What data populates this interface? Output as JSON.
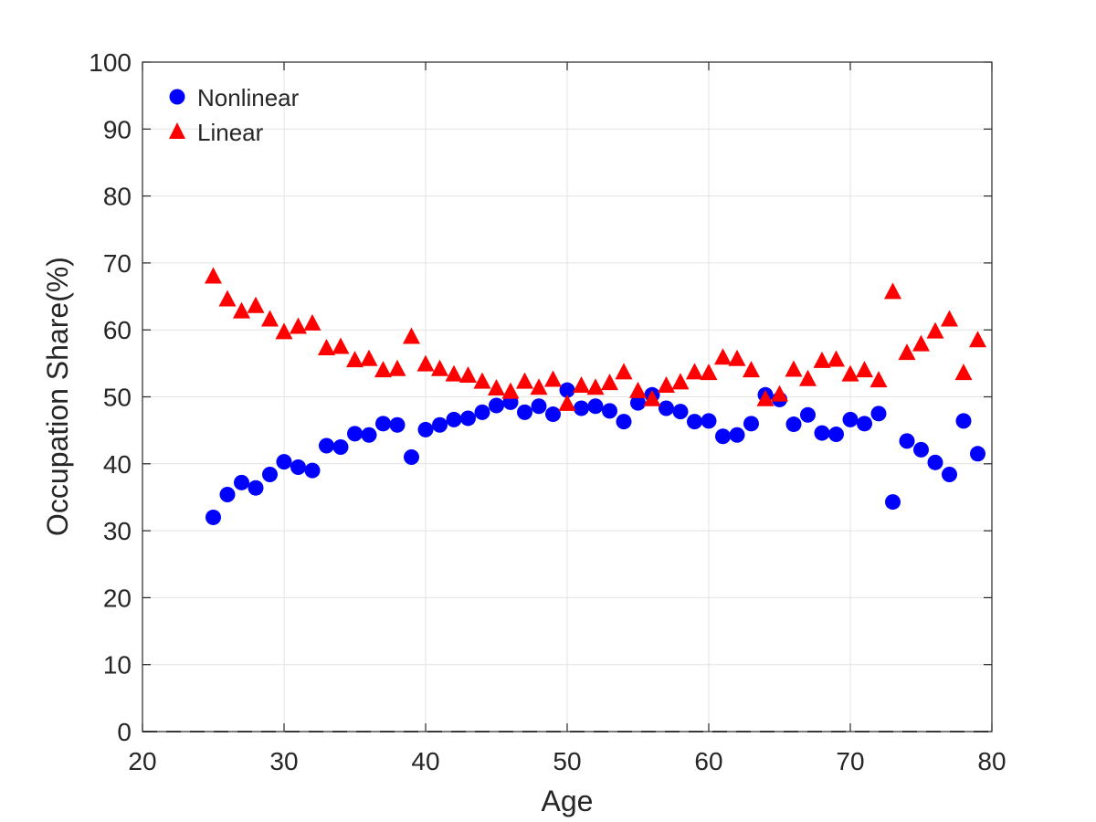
{
  "chart_data": {
    "type": "scatter",
    "xlabel": "Age",
    "ylabel": "Occupation Share(%)",
    "xlim": [
      20,
      80
    ],
    "ylim": [
      0,
      100
    ],
    "xticks": [
      "20",
      "30",
      "40",
      "50",
      "60",
      "70",
      "80"
    ],
    "yticks": [
      "0",
      "10",
      "20",
      "30",
      "40",
      "50",
      "60",
      "70",
      "80",
      "90",
      "100"
    ],
    "grid": true,
    "legend_position": "top-left",
    "reference_line": {
      "y": 0,
      "style": "dashed",
      "color": "#555555"
    },
    "x": [
      25,
      26,
      27,
      28,
      29,
      30,
      31,
      32,
      33,
      34,
      35,
      36,
      37,
      38,
      39,
      40,
      41,
      42,
      43,
      44,
      45,
      46,
      47,
      48,
      49,
      50,
      51,
      52,
      53,
      54,
      55,
      56,
      57,
      58,
      59,
      60,
      61,
      62,
      63,
      64,
      65,
      66,
      67,
      68,
      69,
      70,
      71,
      72,
      73,
      74,
      75,
      76,
      77,
      78,
      79
    ],
    "series": [
      {
        "name": "Nonlinear",
        "marker": "circle",
        "color": "#0000ff",
        "values": [
          32.0,
          35.4,
          37.2,
          36.4,
          38.4,
          40.3,
          39.5,
          39.0,
          42.7,
          42.5,
          44.5,
          44.3,
          46.0,
          45.8,
          41.0,
          45.1,
          45.8,
          46.6,
          46.8,
          47.7,
          48.7,
          49.2,
          47.7,
          48.6,
          47.4,
          51.0,
          48.3,
          48.6,
          47.9,
          46.3,
          49.1,
          50.3,
          48.3,
          47.8,
          46.3,
          46.4,
          44.1,
          44.3,
          46.0,
          50.3,
          49.6,
          45.9,
          47.3,
          44.6,
          44.4,
          46.6,
          46.0,
          47.5,
          34.3,
          43.4,
          42.1,
          40.2,
          38.4,
          46.4,
          41.5
        ]
      },
      {
        "name": "Linear",
        "marker": "triangle",
        "color": "#ff0000",
        "values": [
          68.0,
          64.6,
          62.8,
          63.6,
          61.6,
          59.7,
          60.5,
          61.0,
          57.3,
          57.5,
          55.5,
          55.7,
          54.0,
          54.2,
          59.0,
          54.9,
          54.2,
          53.4,
          53.2,
          52.3,
          51.3,
          50.8,
          52.3,
          51.4,
          52.6,
          49.0,
          51.7,
          51.4,
          52.1,
          53.7,
          50.9,
          49.7,
          51.7,
          52.2,
          53.7,
          53.6,
          55.9,
          55.7,
          54.0,
          49.7,
          50.4,
          54.1,
          52.7,
          55.4,
          55.6,
          53.4,
          54.0,
          52.5,
          65.7,
          56.6,
          57.9,
          59.8,
          61.6,
          53.6,
          58.5
        ]
      }
    ]
  }
}
